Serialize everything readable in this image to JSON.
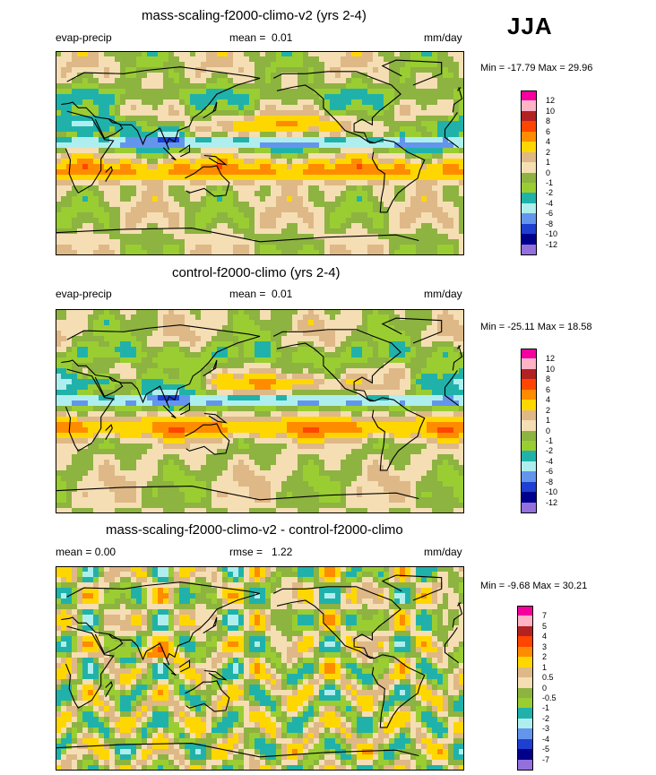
{
  "season": "JJA",
  "panels": [
    {
      "title": "mass-scaling-f2000-climo-v2 (yrs 2-4)",
      "left": "evap-precip",
      "center_label": "mean =",
      "center_value": "0.01",
      "units": "mm/day",
      "min": "-17.79",
      "max": "29.96",
      "minmax_text": "Min = -17.79 Max =  29.96",
      "levels": [
        "12",
        "10",
        "8",
        "6",
        "4",
        "2",
        "1",
        "0",
        "-1",
        "-2",
        "-4",
        "-6",
        "-8",
        "-10",
        "-12"
      ],
      "colors": [
        "#f5009f",
        "#ffb3c6",
        "#b22222",
        "#ff4500",
        "#ff8c00",
        "#ffd700",
        "#deb887",
        "#f5deb3",
        "#8db340",
        "#9acd32",
        "#20b2aa",
        "#afeeee",
        "#6495ed",
        "#1e3fd0",
        "#00008b",
        "#9370db"
      ]
    },
    {
      "title": "control-f2000-climo (yrs 2-4)",
      "left": "evap-precip",
      "center_label": "mean =",
      "center_value": "0.01",
      "units": "mm/day",
      "min": "-25.11",
      "max": "18.58",
      "minmax_text": "Min = -25.11 Max =  18.58",
      "levels": [
        "12",
        "10",
        "8",
        "6",
        "4",
        "2",
        "1",
        "0",
        "-1",
        "-2",
        "-4",
        "-6",
        "-8",
        "-10",
        "-12"
      ],
      "colors": [
        "#f5009f",
        "#ffb3c6",
        "#b22222",
        "#ff4500",
        "#ff8c00",
        "#ffd700",
        "#deb887",
        "#f5deb3",
        "#8db340",
        "#9acd32",
        "#20b2aa",
        "#afeeee",
        "#6495ed",
        "#1e3fd0",
        "#00008b",
        "#9370db"
      ]
    },
    {
      "title": "mass-scaling-f2000-climo-v2 - control-f2000-climo",
      "left": "mean =  0.00",
      "center_label": "rmse =",
      "center_value": "1.22",
      "units": "mm/day",
      "min": "-9.68",
      "max": "30.21",
      "minmax_text": "Min = -9.68 Max =  30.21",
      "levels": [
        "7",
        "5",
        "4",
        "3",
        "2",
        "1",
        "0.5",
        "0",
        "-0.5",
        "-1",
        "-2",
        "-3",
        "-4",
        "-5",
        "-7"
      ],
      "colors": [
        "#f5009f",
        "#ffb3c6",
        "#b22222",
        "#ff4500",
        "#ff8c00",
        "#ffd700",
        "#deb887",
        "#f5deb3",
        "#8db340",
        "#9acd32",
        "#20b2aa",
        "#afeeee",
        "#6495ed",
        "#1e3fd0",
        "#00008b",
        "#9370db"
      ]
    }
  ],
  "chart_data": [
    {
      "type": "heatmap",
      "title": "mass-scaling-f2000-climo-v2 (yrs 2-4)",
      "variable": "evap-precip",
      "units": "mm/day",
      "mean": 0.01,
      "min": -17.79,
      "max": 29.96,
      "contour_levels": [
        12,
        10,
        8,
        6,
        4,
        2,
        1,
        0,
        -1,
        -2,
        -4,
        -6,
        -8,
        -10,
        -12
      ]
    },
    {
      "type": "heatmap",
      "title": "control-f2000-climo (yrs 2-4)",
      "variable": "evap-precip",
      "units": "mm/day",
      "mean": 0.01,
      "min": -25.11,
      "max": 18.58,
      "contour_levels": [
        12,
        10,
        8,
        6,
        4,
        2,
        1,
        0,
        -1,
        -2,
        -4,
        -6,
        -8,
        -10,
        -12
      ]
    },
    {
      "type": "heatmap",
      "title": "mass-scaling-f2000-climo-v2 - control-f2000-climo",
      "units": "mm/day",
      "mean": 0.0,
      "rmse": 1.22,
      "min": -9.68,
      "max": 30.21,
      "contour_levels": [
        7,
        5,
        4,
        3,
        2,
        1,
        0.5,
        0,
        -0.5,
        -1,
        -2,
        -3,
        -4,
        -5,
        -7
      ]
    }
  ]
}
